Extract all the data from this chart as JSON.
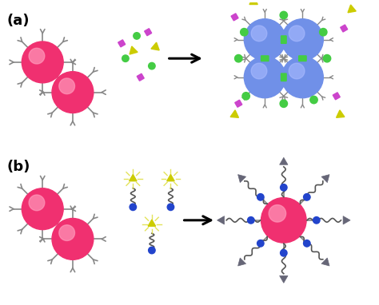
{
  "fig_width": 4.74,
  "fig_height": 3.82,
  "bg_color": "#ffffff",
  "label_a": "(a)",
  "label_b": "(b)",
  "label_fontsize": 13,
  "red_ball_color": "#f03070",
  "red_ball_highlight": "#ff99bb",
  "blue_ball_color": "#7090e8",
  "blue_ball_highlight": "#aabbff",
  "green_dot_color": "#44cc44",
  "magenta_sq_color": "#cc44cc",
  "yellow_tri_color": "#cccc00",
  "gray_connector_color": "#888888",
  "dark_gray_tri_color": "#666677",
  "blue_dot_color": "#2244cc",
  "yellow_glow_color": "#eeee44"
}
